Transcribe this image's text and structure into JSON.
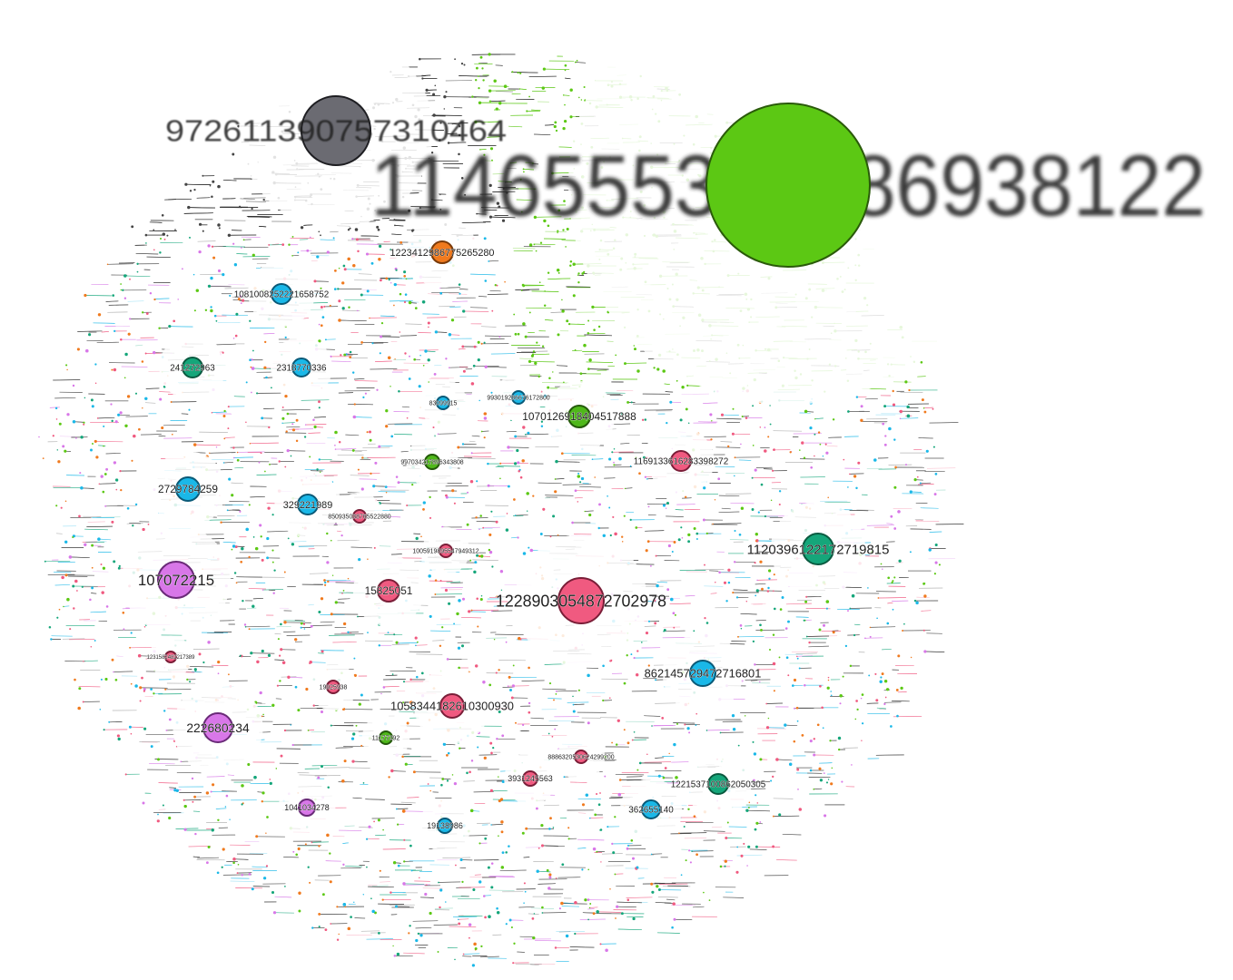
{
  "graph": {
    "nodes": [
      {
        "id": "1146555342286938122",
        "label": "1146555342286938122",
        "color": "#5cc814",
        "stroke": "#2a5a0a",
        "size": 10
      },
      {
        "id": "972611390757310464",
        "label": "972611390757310464",
        "color": "#6b6b72",
        "stroke": "#1e1e22",
        "size": 6
      },
      {
        "id": "1223412986775265280",
        "label": "1223412986775265280",
        "color": "#f07a1e",
        "stroke": "#7a3a08",
        "size": 2
      },
      {
        "id": "1081008252221658752",
        "label": "1081008252221658752",
        "color": "#1ab8e8",
        "stroke": "#0a5a78",
        "size": 2
      },
      {
        "id": "241272963",
        "label": "241272963",
        "color": "#15a67a",
        "stroke": "#0a5a40",
        "size": 2
      },
      {
        "id": "2318770336",
        "label": "2318770336",
        "color": "#1ab8e8",
        "stroke": "#0a5a78",
        "size": 2
      },
      {
        "id": "1070126918404517888",
        "label": "1070126918404517888",
        "color": "#4fb81a",
        "stroke": "#245a0a",
        "size": 3
      },
      {
        "id": "1169133616283398272",
        "label": "1169133616283398272",
        "color": "#f05a80",
        "stroke": "#7a1e38",
        "size": 2
      },
      {
        "id": "2729784259",
        "label": "2729784259",
        "color": "#1ab8e8",
        "stroke": "#0a5a78",
        "size": 2
      },
      {
        "id": "329221989",
        "label": "329221989",
        "color": "#1ab8e8",
        "stroke": "#0a5a78",
        "size": 2
      },
      {
        "id": "107072215",
        "label": "107072215",
        "color": "#d877e8",
        "stroke": "#6a2a78",
        "size": 3
      },
      {
        "id": "15825051",
        "label": "15825051",
        "color": "#f05a80",
        "stroke": "#7a1e38",
        "size": 2
      },
      {
        "id": "1228903054872702978",
        "label": "1228903054872702978",
        "color": "#f05a80",
        "stroke": "#7a1e38",
        "size": 5
      },
      {
        "id": "1120396122172719815",
        "label": "1120396122172719815",
        "color": "#15a67a",
        "stroke": "#0a5a40",
        "size": 3
      },
      {
        "id": "862145729472716801",
        "label": "862145729472716801",
        "color": "#1ab8e8",
        "stroke": "#0a5a78",
        "size": 2
      },
      {
        "id": "1058344182610300930",
        "label": "1058344182610300930",
        "color": "#f05a80",
        "stroke": "#7a1e38",
        "size": 2
      },
      {
        "id": "222680234",
        "label": "222680234",
        "color": "#d877e8",
        "stroke": "#6a2a78",
        "size": 3
      },
      {
        "id": "1221537100862050305",
        "label": "1221537100862050305",
        "color": "#15a67a",
        "stroke": "#0a5a40",
        "size": 2
      },
      {
        "id": "362655140",
        "label": "362655140",
        "color": "#1ab8e8",
        "stroke": "#0a5a78",
        "size": 2
      },
      {
        "id": "3931245563",
        "label": "3931245563",
        "color": "#f05a80",
        "stroke": "#7a1e38",
        "size": 1
      },
      {
        "id": "1041034278",
        "label": "1041034278",
        "color": "#d877e8",
        "stroke": "#6a2a78",
        "size": 1
      },
      {
        "id": "19138986",
        "label": "19138986",
        "color": "#1ab8e8",
        "stroke": "#0a5a78",
        "size": 1
      },
      {
        "id": "19925938",
        "label": "19925938",
        "color": "#f05a80",
        "stroke": "#7a1e38",
        "size": 1
      },
      {
        "id": "997034217896343808",
        "label": "997034217896343808",
        "color": "#4fb81a",
        "stroke": "#245a0a",
        "size": 1
      },
      {
        "id": "850935038765522880",
        "label": "850935038765522880",
        "color": "#f05a80",
        "stroke": "#7a1e38",
        "size": 1
      },
      {
        "id": "1005919895547949312",
        "label": "1005919895547949312",
        "color": "#f05a80",
        "stroke": "#7a1e38",
        "size": 1
      },
      {
        "id": "83099915",
        "label": "83099915",
        "color": "#1ab8e8",
        "stroke": "#0a5a78",
        "size": 1
      },
      {
        "id": "993019286676172800",
        "label": "993019286676172800",
        "color": "#1ab8e8",
        "stroke": "#0a5a78",
        "size": 1
      },
      {
        "id": "11177292",
        "label": "11177292",
        "color": "#4fb81a",
        "stroke": "#245a0a",
        "size": 1
      },
      {
        "id": "8886320530624299200",
        "label": "8886320530624299200",
        "color": "#f05a80",
        "stroke": "#7a1e38",
        "size": 1
      },
      {
        "id": "1231582482217389",
        "label": "1231582482217389",
        "color": "#f05a80",
        "stroke": "#7a1e38",
        "size": 1
      }
    ],
    "palette": [
      "#5cc814",
      "#1ab8e8",
      "#f05a80",
      "#d877e8",
      "#15a67a",
      "#f07a1e",
      "#6b6b72",
      "#b08a1a",
      "#2a2a2a"
    ]
  }
}
